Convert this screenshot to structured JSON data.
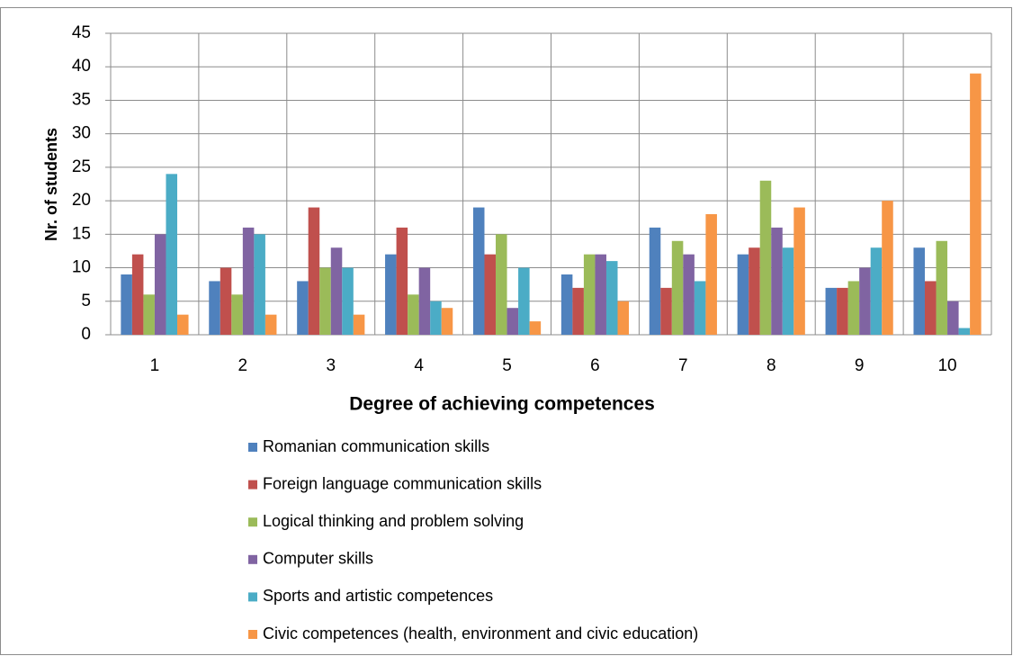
{
  "chart_data": {
    "type": "bar",
    "y_label": "Nr. of students",
    "x_label": "Degree of achieving competences",
    "categories": [
      "1",
      "2",
      "3",
      "4",
      "5",
      "6",
      "7",
      "8",
      "9",
      "10"
    ],
    "series": [
      {
        "name": "Romanian communication skills",
        "color": "#4f81bd",
        "values": [
          9,
          8,
          8,
          12,
          19,
          9,
          16,
          12,
          7,
          13
        ]
      },
      {
        "name": "Foreign language communication skills",
        "color": "#c0504d",
        "values": [
          12,
          10,
          19,
          16,
          12,
          7,
          7,
          13,
          7,
          8
        ]
      },
      {
        "name": "Logical thinking and problem solving",
        "color": "#9bbb59",
        "values": [
          6,
          6,
          10,
          6,
          15,
          12,
          14,
          23,
          8,
          14
        ]
      },
      {
        "name": "Computer skills",
        "color": "#8064a2",
        "values": [
          15,
          16,
          13,
          10,
          4,
          12,
          12,
          16,
          10,
          5
        ]
      },
      {
        "name": "Sports and artistic competences",
        "color": "#4bacc6",
        "values": [
          24,
          15,
          10,
          5,
          10,
          11,
          8,
          13,
          13,
          1
        ]
      },
      {
        "name": "Civic competences (health, environment and civic education)",
        "color": "#f79646",
        "values": [
          3,
          3,
          3,
          4,
          2,
          5,
          18,
          19,
          20,
          39
        ]
      }
    ],
    "ylim": [
      0,
      45
    ],
    "yticks": [
      0,
      5,
      10,
      15,
      20,
      25,
      30,
      35,
      40,
      45
    ],
    "grid": true,
    "legend": "bottom"
  }
}
